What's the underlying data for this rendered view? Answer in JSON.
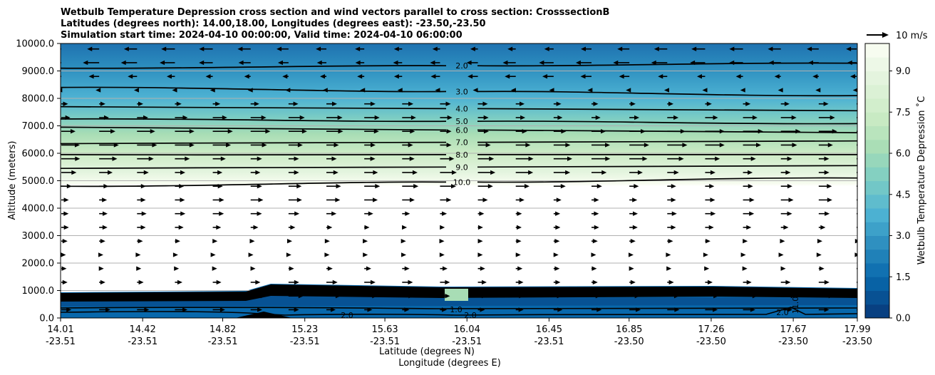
{
  "chart_data": {
    "type": "contour",
    "title_lines": [
      "Wetbulb Temperature Depression cross section and wind vectors parallel to cross section: CrosssectionB",
      "Latitudes (degrees north): 14.00,18.00, Longitudes (degrees east): -23.50,-23.50",
      "Simulation start time: 2024-04-10 00:00:00, Valid time: 2024-04-10 06:00:00"
    ],
    "ylabel": "Altitude (meters)",
    "xlabel_lat": "Latitude (degrees N)",
    "xlabel_lon": "Longitude (degrees E)",
    "ylim": [
      0,
      10000
    ],
    "y_ticks": [
      "0.0",
      "1000.0",
      "2000.0",
      "3000.0",
      "4000.0",
      "5000.0",
      "6000.0",
      "7000.0",
      "8000.0",
      "9000.0",
      "10000.0"
    ],
    "x_ticks": [
      {
        "lat": "14.01",
        "lon": "-23.51"
      },
      {
        "lat": "14.42",
        "lon": "-23.51"
      },
      {
        "lat": "14.82",
        "lon": "-23.51"
      },
      {
        "lat": "15.23",
        "lon": "-23.51"
      },
      {
        "lat": "15.63",
        "lon": "-23.51"
      },
      {
        "lat": "16.04",
        "lon": "-23.51"
      },
      {
        "lat": "16.45",
        "lon": "-23.51"
      },
      {
        "lat": "16.85",
        "lon": "-23.50"
      },
      {
        "lat": "17.26",
        "lon": "-23.50"
      },
      {
        "lat": "17.67",
        "lon": "-23.50"
      },
      {
        "lat": "17.99",
        "lon": "-23.50"
      }
    ],
    "grid": "horizontal",
    "colorbar": {
      "label": "Wetbulb Temperature Depression $^\\circ$C",
      "label_display": "Wetbulb Temperature Depression ˚C",
      "range": [
        0,
        10
      ],
      "ticks": [
        "0.0",
        "1.5",
        "3.0",
        "4.5",
        "6.0",
        "7.5",
        "9.0"
      ],
      "colors_low_to_high": [
        "#084081",
        "#0868ac",
        "#2b8cbe",
        "#4eb3d3",
        "#7bccc4",
        "#a8ddb5",
        "#ccebc5",
        "#e0f3db",
        "#f7fcf0"
      ]
    },
    "quiver_key": "10 m/s",
    "contour_levels_labeled": [
      "1.0",
      "2.0",
      "3.0",
      "4.0",
      "5.0",
      "6.0",
      "7.0",
      "8.0",
      "9.0",
      "10.0",
      "11.0"
    ],
    "isolines": [
      {
        "level": "2.0",
        "y_left": 9100,
        "y_right": 9280
      },
      {
        "level": "3.0",
        "y_left": 8400,
        "y_right": 8100
      },
      {
        "level": "4.0",
        "y_left": 7700,
        "y_right": 7550
      },
      {
        "level": "5.0",
        "y_left": 7250,
        "y_right": 7080
      },
      {
        "level": "6.0",
        "y_left": 6950,
        "y_right": 6750
      },
      {
        "level": "7.0",
        "y_left": 6350,
        "y_right": 6450
      },
      {
        "level": "8.0",
        "y_left": 5950,
        "y_right": 5950
      },
      {
        "level": "9.0",
        "y_left": 5450,
        "y_right": 5550
      },
      {
        "level": "10.0",
        "y_left": 4800,
        "y_right": 5100
      }
    ],
    "wind_rows": [
      {
        "alt": 9800,
        "u": -5.5
      },
      {
        "alt": 9300,
        "u": -6.5
      },
      {
        "alt": 8800,
        "u": -4.5
      },
      {
        "alt": 8300,
        "u": -2.0
      },
      {
        "alt": 7800,
        "u": 4.5
      },
      {
        "alt": 7300,
        "u": 6.5
      },
      {
        "alt": 6800,
        "u": 8.0
      },
      {
        "alt": 6300,
        "u": 8.0
      },
      {
        "alt": 5800,
        "u": 7.5
      },
      {
        "alt": 5300,
        "u": 7.0
      },
      {
        "alt": 4800,
        "u": 6.5
      },
      {
        "alt": 4300,
        "u": 5.5
      },
      {
        "alt": 3800,
        "u": 4.5
      },
      {
        "alt": 3300,
        "u": 3.5
      },
      {
        "alt": 2800,
        "u": 2.5
      },
      {
        "alt": 2300,
        "u": 2.0
      },
      {
        "alt": 1800,
        "u": 3.0
      },
      {
        "alt": 1300,
        "u": 4.5
      },
      {
        "alt": 800,
        "u": 6.0
      },
      {
        "alt": 300,
        "u": 5.0
      }
    ]
  }
}
